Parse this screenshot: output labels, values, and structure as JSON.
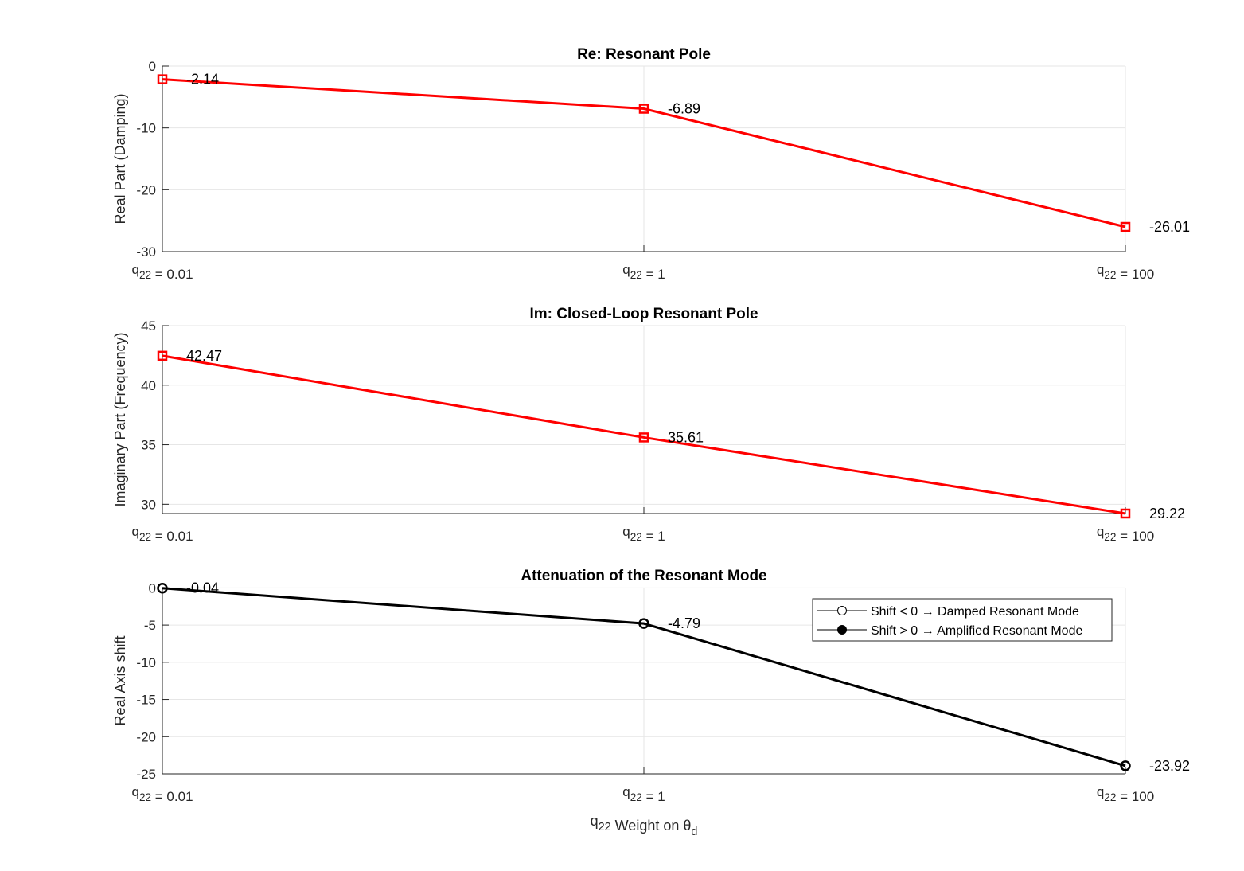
{
  "chart_data": [
    {
      "type": "line",
      "title": "Re: Resonant Pole",
      "ylabel": "Real Part (Damping)",
      "xlabel": "",
      "categories": [
        {
          "base": "q",
          "sub": "22",
          "rest": " = 0.01"
        },
        {
          "base": "q",
          "sub": "22",
          "rest": " = 1"
        },
        {
          "base": "q",
          "sub": "22",
          "rest": " = 100"
        }
      ],
      "ylim": [
        -30,
        0
      ],
      "yticks": [
        0,
        -10,
        -20,
        -30
      ],
      "yticklabels": [
        "0",
        "-10",
        "-20",
        "-30"
      ],
      "grid": true,
      "series": [
        {
          "values": [
            -2.14,
            -6.89,
            -26.01
          ],
          "labels": [
            "-2.14",
            "-6.89",
            "-26.01"
          ],
          "color": "#ff0000",
          "marker": "square"
        }
      ]
    },
    {
      "type": "line",
      "title": "Im: Closed-Loop Resonant Pole",
      "ylabel": "Imaginary Part (Frequency)",
      "xlabel": "",
      "categories": [
        {
          "base": "q",
          "sub": "22",
          "rest": " = 0.01"
        },
        {
          "base": "q",
          "sub": "22",
          "rest": " = 1"
        },
        {
          "base": "q",
          "sub": "22",
          "rest": " = 100"
        }
      ],
      "ylim": [
        29.22,
        45
      ],
      "yticks": [
        45,
        40,
        35,
        30
      ],
      "yticklabels": [
        "45",
        "40",
        "35",
        "30"
      ],
      "grid": true,
      "series": [
        {
          "values": [
            42.47,
            35.61,
            29.22
          ],
          "labels": [
            "42.47",
            "35.61",
            "29.22"
          ],
          "color": "#ff0000",
          "marker": "square"
        }
      ]
    },
    {
      "type": "line",
      "title": "Attenuation of the Resonant Mode",
      "ylabel": "Real Axis shift",
      "xlabel": {
        "base": "q",
        "sub": "22",
        "mid": " Weight on θ",
        "sub2": "d"
      },
      "categories": [
        {
          "base": "q",
          "sub": "22",
          "rest": " = 0.01"
        },
        {
          "base": "q",
          "sub": "22",
          "rest": " = 1"
        },
        {
          "base": "q",
          "sub": "22",
          "rest": " = 100"
        }
      ],
      "ylim": [
        -25,
        0.04
      ],
      "yticks": [
        0,
        -5,
        -10,
        -15,
        -20,
        -25
      ],
      "yticklabels": [
        "0",
        "-5",
        "-10",
        "-15",
        "-20",
        "-25"
      ],
      "grid": true,
      "series": [
        {
          "values": [
            -0.04,
            -4.79,
            -23.92
          ],
          "labels": [
            "-0.04",
            "-4.79",
            "-23.92"
          ],
          "color": "#000000",
          "marker": "circle"
        }
      ],
      "legend": {
        "placement": "top-right",
        "entries": [
          {
            "label": "Shift < 0 → Damped Resonant Mode",
            "marker": "open-circle"
          },
          {
            "label": "Shift > 0 → Amplified Resonant Mode",
            "marker": "filled-circle"
          }
        ]
      }
    }
  ]
}
